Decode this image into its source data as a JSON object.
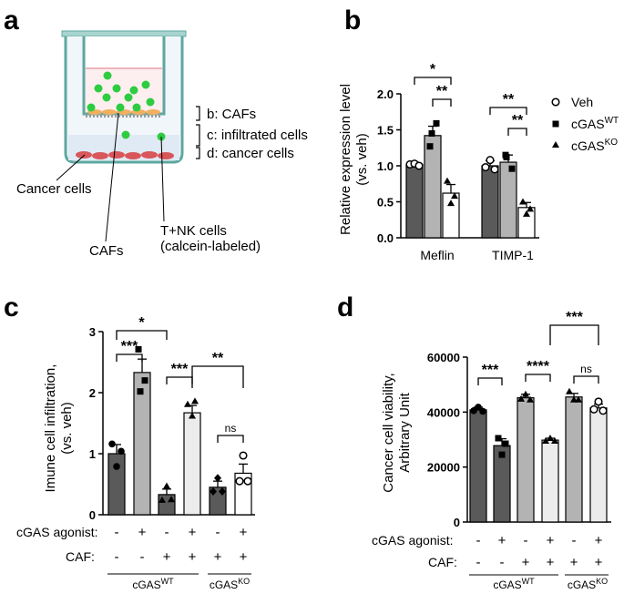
{
  "panels": {
    "a": "a",
    "b": "b",
    "c": "c",
    "d": "d"
  },
  "schematic": {
    "bracket_b": "b: CAFs",
    "bracket_c": "c: infiltrated cells",
    "bracket_d": "d: cancer cells",
    "cancer_cells": "Cancer cells",
    "tnk_line1": "T+NK cells",
    "tnk_line2": "(calcein-labeled)",
    "cafs": "CAFs"
  },
  "colors": {
    "dark": "#5a5a5a",
    "mid": "#b3b3b3",
    "light": "#ececec",
    "white": "#ffffff",
    "green": "#2ecc40"
  },
  "chart_data": [
    {
      "id": "b",
      "type": "bar",
      "ylabel_line1": "Relative expression level",
      "ylabel_line2": "(vs. veh)",
      "categories": [
        "Meflin",
        "TIMP-1"
      ],
      "yticks": [
        "0.0",
        "0.5",
        "1.0",
        "1.5",
        "2.0"
      ],
      "ylim": [
        0,
        2.0
      ],
      "legend": [
        {
          "base": "Veh",
          "sup": ""
        },
        {
          "base": "cGAS",
          "sup": "WT"
        },
        {
          "base": "cGAS",
          "sup": "KO"
        }
      ],
      "series": [
        {
          "name": "Veh",
          "values": [
            1.02,
            1.0
          ],
          "errors": [
            0.03,
            0.07
          ]
        },
        {
          "name": "cGAS WT",
          "values": [
            1.42,
            1.05
          ],
          "errors": [
            0.13,
            0.1
          ]
        },
        {
          "name": "cGAS KO",
          "values": [
            0.62,
            0.42
          ],
          "errors": [
            0.12,
            0.07
          ]
        }
      ],
      "significance": [
        "*",
        "**",
        "**",
        "**"
      ]
    },
    {
      "id": "c",
      "type": "bar",
      "ylabel_line1": "Imune cell infiltration,",
      "ylabel_line2": "(vs. veh)",
      "yticks": [
        "0",
        "1",
        "2",
        "3"
      ],
      "ylim": [
        0,
        3
      ],
      "values": [
        1.0,
        2.33,
        0.33,
        1.67,
        0.45,
        0.68
      ],
      "errors": [
        0.15,
        0.22,
        0.09,
        0.12,
        0.1,
        0.15
      ],
      "row1_label": "cGAS agonist:",
      "row2_label": "CAF:",
      "row1": [
        "-",
        "+",
        "-",
        "+",
        "-",
        "+"
      ],
      "row2": [
        "-",
        "-",
        "+",
        "+",
        "+",
        "+"
      ],
      "group1": {
        "base": "cGAS",
        "sup": "WT"
      },
      "group2": {
        "base": "cGAS",
        "sup": "KO"
      },
      "significance": [
        "*",
        "***",
        "***",
        "**",
        "ns"
      ]
    },
    {
      "id": "d",
      "type": "bar",
      "ylabel_line1": "Cancer cell viability,",
      "ylabel_line2": "Arbitrary Unit",
      "yticks": [
        "0",
        "20000",
        "40000",
        "60000"
      ],
      "ylim": [
        0,
        60000
      ],
      "values": [
        40800,
        27800,
        45200,
        29800,
        45500,
        41500
      ],
      "errors": [
        1000,
        2500,
        1300,
        700,
        1300,
        1400
      ],
      "row1_label": "cGAS agonist:",
      "row2_label": "CAF:",
      "row1": [
        "-",
        "+",
        "-",
        "+",
        "-",
        "+"
      ],
      "row2": [
        "-",
        "-",
        "+",
        "+",
        "+",
        "+"
      ],
      "group1": {
        "base": "cGAS",
        "sup": "WT"
      },
      "group2": {
        "base": "cGAS",
        "sup": "KO"
      },
      "significance": [
        "***",
        "****",
        "***",
        "ns"
      ]
    }
  ]
}
